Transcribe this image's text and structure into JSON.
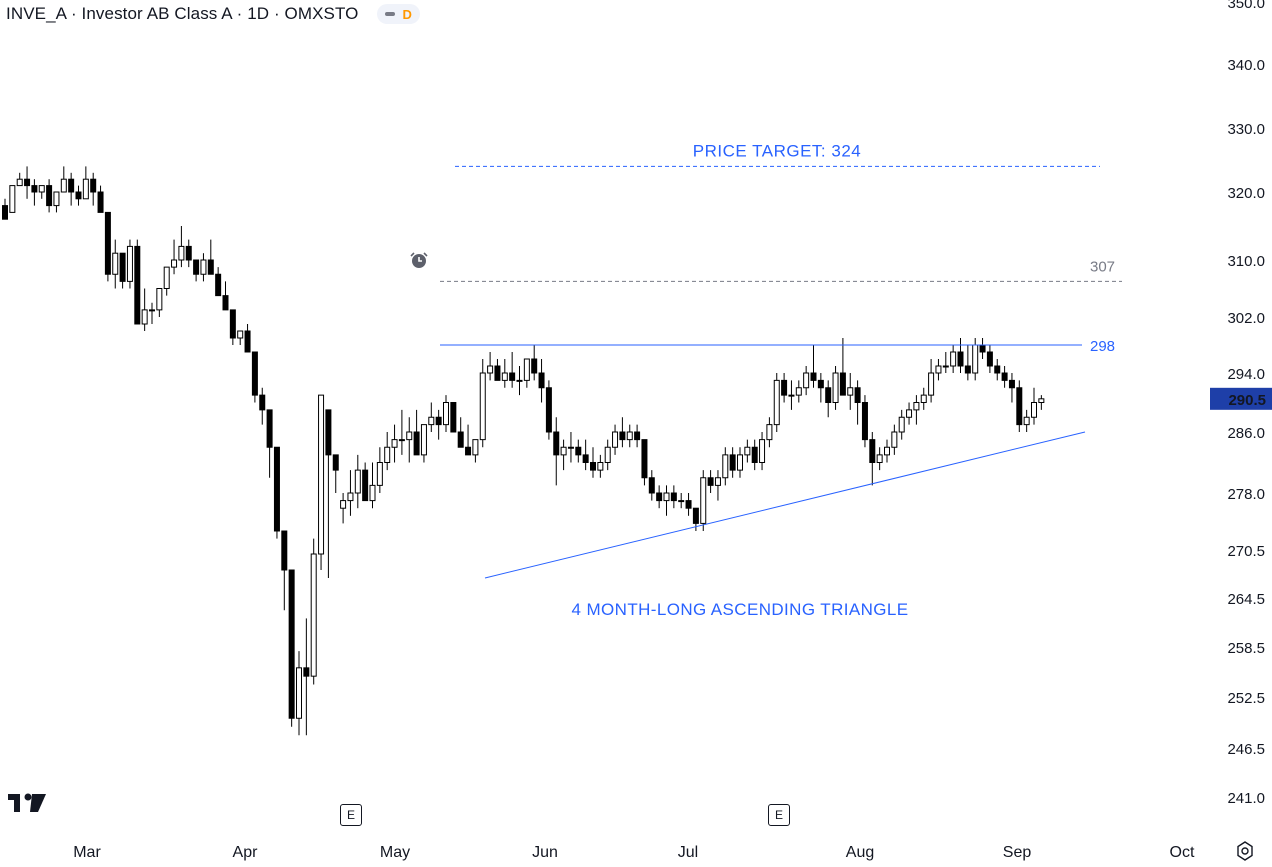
{
  "header": {
    "title": "INVE_A · Investor AB Class A · 1D · OMXSTO",
    "badge": "D"
  },
  "colors": {
    "up_candle": "#ffffff",
    "down_candle": "#000000",
    "candle_border": "#000000",
    "pattern_line": "#2962ff",
    "target_line": "#2962ff",
    "level_307": "#787b86",
    "current_price_bg": "#1e3fa8"
  },
  "icons": [
    "tradingview-logo-icon",
    "alarm-clock-icon",
    "earnings-marker-icon",
    "settings-icon"
  ],
  "earnings_marker_label": "E",
  "chart_data": {
    "type": "candlestick",
    "y_axis_ticks": [
      "350.0",
      "340.0",
      "330.0",
      "320.0",
      "310.0",
      "302.0",
      "294.0",
      "286.0",
      "278.0",
      "270.5",
      "264.5",
      "258.5",
      "252.5",
      "246.5",
      "241.0"
    ],
    "x_axis_ticks": [
      "Mar",
      "Apr",
      "May",
      "Jun",
      "Jul",
      "Aug",
      "Sep",
      "Oct"
    ],
    "current_price": "290.5",
    "annotations": {
      "target_text": "PRICE TARGET: 324",
      "target_value": 324,
      "level_307_label": "307",
      "level_307_value": 307,
      "resistance_label": "298",
      "resistance_value": 298,
      "pattern_text": "4 MONTH-LONG ASCENDING TRIANGLE"
    },
    "resistance_line": {
      "start_date": "2025-05-06",
      "end_date": "2025-09-30",
      "value": 298
    },
    "support_line": [
      {
        "date": "2025-05-21",
        "value": 267
      },
      {
        "date": "2025-06-23",
        "value": 272.5
      },
      {
        "date": "2025-07-31",
        "value": 279
      },
      {
        "date": "2025-09-19",
        "value": 286
      }
    ],
    "candles_approx": [
      [
        0,
        318,
        319,
        317,
        316
      ],
      [
        1,
        317,
        321,
        317,
        321
      ],
      [
        2,
        321,
        323,
        321,
        322
      ],
      [
        3,
        322,
        324,
        319,
        321
      ],
      [
        4,
        321,
        322,
        318,
        320
      ],
      [
        5,
        320,
        321,
        319,
        321
      ],
      [
        6,
        321,
        322,
        317,
        318
      ],
      [
        7,
        318,
        320,
        317,
        320
      ],
      [
        8,
        320,
        324,
        320,
        322
      ],
      [
        9,
        322,
        323,
        318,
        320
      ],
      [
        10,
        320,
        321,
        318,
        319
      ],
      [
        11,
        319,
        324,
        319,
        322
      ],
      [
        12,
        322,
        323,
        318,
        320
      ],
      [
        13,
        320,
        321,
        317,
        317
      ],
      [
        14,
        317,
        317,
        307,
        308
      ],
      [
        15,
        308,
        313,
        306,
        311
      ],
      [
        16,
        311,
        311,
        306,
        307
      ],
      [
        17,
        307,
        313,
        306,
        312
      ],
      [
        18,
        312,
        313,
        301,
        301
      ],
      [
        19,
        301,
        306,
        300,
        303
      ],
      [
        20,
        303,
        304,
        301,
        303
      ],
      [
        21,
        303,
        306,
        302,
        306
      ],
      [
        22,
        306,
        309,
        305,
        309
      ],
      [
        23,
        309,
        313,
        308,
        310
      ],
      [
        24,
        310,
        315,
        309,
        312
      ],
      [
        25,
        312,
        313,
        309,
        310
      ],
      [
        26,
        310,
        310,
        307,
        308
      ],
      [
        27,
        308,
        311,
        307,
        310
      ],
      [
        28,
        310,
        313,
        309,
        308
      ],
      [
        29,
        308,
        309,
        305,
        305
      ],
      [
        30,
        305,
        307,
        303,
        303
      ],
      [
        31,
        303,
        302,
        298,
        299
      ],
      [
        32,
        299,
        300,
        298,
        300
      ],
      [
        33,
        300,
        301,
        297,
        297
      ],
      [
        34,
        297,
        296,
        290,
        291
      ],
      [
        35,
        291,
        292,
        287,
        289
      ],
      [
        36,
        289,
        288,
        280,
        284
      ],
      [
        37,
        284,
        283,
        272,
        273
      ],
      [
        38,
        273,
        272,
        263,
        268
      ],
      [
        39,
        268,
        267,
        249,
        250
      ],
      [
        40,
        250,
        258,
        248,
        256
      ],
      [
        41,
        256,
        262,
        248,
        255
      ],
      [
        42,
        255,
        272,
        254,
        270
      ],
      [
        43,
        270,
        290,
        268,
        291
      ],
      [
        44,
        289,
        285,
        267,
        283
      ],
      [
        45,
        283,
        282,
        278,
        281
      ],
      [
        46,
        276,
        278,
        274,
        277
      ],
      [
        47,
        277,
        281,
        275,
        278
      ],
      [
        48,
        278,
        283,
        276,
        281
      ],
      [
        49,
        281,
        282,
        277,
        277
      ],
      [
        50,
        277,
        282,
        276,
        279
      ],
      [
        51,
        279,
        284,
        278,
        282
      ],
      [
        52,
        282,
        286,
        281,
        284
      ],
      [
        53,
        284,
        287,
        282,
        285
      ],
      [
        54,
        285,
        289,
        283,
        285
      ],
      [
        55,
        285,
        288,
        282,
        286
      ],
      [
        56,
        286,
        289,
        284,
        283
      ],
      [
        57,
        283,
        287,
        282,
        287
      ],
      [
        58,
        287,
        290,
        286,
        288
      ],
      [
        59,
        288,
        289,
        285,
        287
      ],
      [
        60,
        287,
        291,
        286,
        290
      ],
      [
        61,
        290,
        290,
        286,
        286
      ],
      [
        62,
        286,
        288,
        284,
        284
      ],
      [
        63,
        284,
        287,
        283,
        283
      ],
      [
        64,
        283,
        285,
        282,
        285
      ],
      [
        65,
        285,
        296,
        284,
        294
      ],
      [
        66,
        294,
        297,
        293,
        295
      ],
      [
        67,
        295,
        296,
        293,
        293
      ],
      [
        68,
        293,
        296,
        292,
        294
      ],
      [
        69,
        294,
        297,
        292,
        293
      ],
      [
        70,
        293,
        295,
        291,
        293
      ],
      [
        71,
        293,
        296,
        292,
        296
      ],
      [
        72,
        296,
        298,
        293,
        294
      ],
      [
        73,
        294,
        296,
        290,
        292
      ],
      [
        74,
        292,
        293,
        285,
        286
      ],
      [
        75,
        286,
        288,
        279,
        283
      ],
      [
        76,
        283,
        285,
        281,
        284
      ],
      [
        77,
        284,
        286,
        282,
        284
      ],
      [
        78,
        284,
        285,
        282,
        283
      ],
      [
        79,
        283,
        285,
        281,
        282
      ],
      [
        80,
        282,
        284,
        280,
        281
      ],
      [
        81,
        281,
        283,
        280,
        282
      ],
      [
        82,
        282,
        285,
        281,
        284
      ],
      [
        83,
        284,
        287,
        283,
        286
      ],
      [
        84,
        286,
        288,
        284,
        285
      ],
      [
        85,
        285,
        287,
        284,
        286
      ],
      [
        86,
        286,
        287,
        284,
        285
      ],
      [
        87,
        285,
        285,
        279,
        280
      ],
      [
        88,
        280,
        281,
        277,
        278
      ],
      [
        89,
        278,
        279,
        276,
        277
      ],
      [
        90,
        277,
        279,
        275,
        278
      ],
      [
        91,
        278,
        279,
        276,
        277
      ],
      [
        92,
        277,
        278,
        276,
        277
      ],
      [
        93,
        277,
        278,
        275,
        276
      ],
      [
        94,
        276,
        276,
        273,
        274
      ],
      [
        95,
        274,
        281,
        273,
        280
      ],
      [
        96,
        280,
        281,
        278,
        279
      ],
      [
        97,
        279,
        281,
        277,
        280
      ],
      [
        98,
        280,
        284,
        279,
        283
      ],
      [
        99,
        283,
        284,
        280,
        281
      ],
      [
        100,
        281,
        284,
        280,
        283
      ],
      [
        101,
        283,
        285,
        282,
        284
      ],
      [
        102,
        284,
        285,
        281,
        282
      ],
      [
        103,
        282,
        286,
        281,
        285
      ],
      [
        104,
        285,
        288,
        284,
        287
      ],
      [
        105,
        287,
        294,
        286,
        293
      ],
      [
        106,
        293,
        294,
        290,
        291
      ],
      [
        107,
        291,
        293,
        289,
        291
      ],
      [
        108,
        291,
        293,
        290,
        292
      ],
      [
        109,
        292,
        295,
        291,
        294
      ],
      [
        110,
        294,
        298,
        292,
        293
      ],
      [
        111,
        293,
        294,
        290,
        292
      ],
      [
        112,
        292,
        293,
        288,
        290
      ],
      [
        113,
        290,
        295,
        289,
        294
      ],
      [
        114,
        294,
        299,
        293,
        291
      ],
      [
        115,
        291,
        294,
        289,
        292
      ],
      [
        116,
        292,
        293,
        287,
        290
      ],
      [
        117,
        290,
        291,
        284,
        285
      ],
      [
        118,
        285,
        286,
        279,
        282
      ],
      [
        119,
        282,
        284,
        281,
        283
      ],
      [
        120,
        283,
        285,
        282,
        284
      ],
      [
        121,
        284,
        287,
        283,
        286
      ],
      [
        122,
        286,
        289,
        285,
        288
      ],
      [
        123,
        288,
        290,
        287,
        289
      ],
      [
        124,
        289,
        291,
        287,
        290
      ],
      [
        125,
        290,
        292,
        289,
        291
      ],
      [
        126,
        291,
        296,
        290,
        294
      ],
      [
        127,
        294,
        296,
        293,
        295
      ],
      [
        128,
        295,
        297,
        294,
        295
      ],
      [
        129,
        295,
        298,
        294,
        297
      ],
      [
        130,
        297,
        299,
        294,
        295
      ],
      [
        131,
        295,
        298,
        293,
        294
      ],
      [
        132,
        294,
        299,
        293,
        298
      ],
      [
        133,
        298,
        299,
        296,
        297
      ],
      [
        134,
        297,
        298,
        294,
        295
      ],
      [
        135,
        295,
        296,
        293,
        294
      ],
      [
        136,
        294,
        295,
        292,
        293
      ],
      [
        137,
        293,
        294,
        290,
        292
      ],
      [
        138,
        292,
        293,
        286,
        287
      ],
      [
        139,
        287,
        289,
        286,
        288
      ],
      [
        140,
        288,
        292,
        287,
        290
      ],
      [
        141,
        290,
        291,
        289,
        290.5
      ]
    ]
  }
}
